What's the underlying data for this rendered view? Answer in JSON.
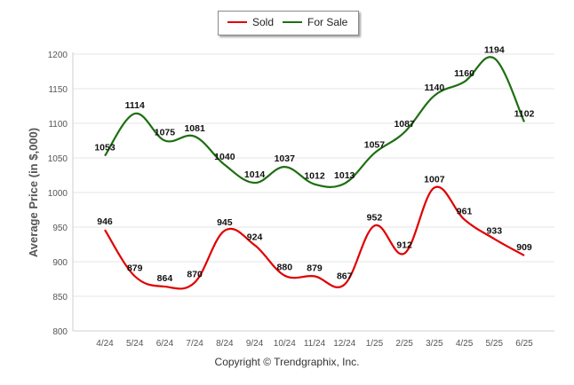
{
  "chart_data": {
    "type": "line",
    "title": "",
    "xlabel": "",
    "ylabel": "Average Price (in $,000)",
    "ylim": [
      800,
      1200
    ],
    "yticks": [
      800,
      850,
      900,
      950,
      1000,
      1050,
      1100,
      1150,
      1200
    ],
    "grid": true,
    "legend_position": "top-center",
    "categories": [
      "4/24",
      "5/24",
      "6/24",
      "7/24",
      "8/24",
      "9/24",
      "10/24",
      "11/24",
      "12/24",
      "1/25",
      "2/25",
      "3/25",
      "4/25",
      "5/25",
      "6/25"
    ],
    "series": [
      {
        "name": "Sold",
        "color": "#e00000",
        "values": [
          946,
          879,
          864,
          870,
          945,
          924,
          880,
          879,
          867,
          952,
          912,
          1007,
          961,
          933,
          909
        ]
      },
      {
        "name": "For Sale",
        "color": "#1e6e12",
        "values": [
          1053,
          1114,
          1075,
          1081,
          1040,
          1014,
          1037,
          1012,
          1013,
          1057,
          1087,
          1140,
          1160,
          1194,
          1102
        ]
      }
    ]
  },
  "footer": {
    "copyright": "Copyright © Trendgraphix, Inc."
  }
}
